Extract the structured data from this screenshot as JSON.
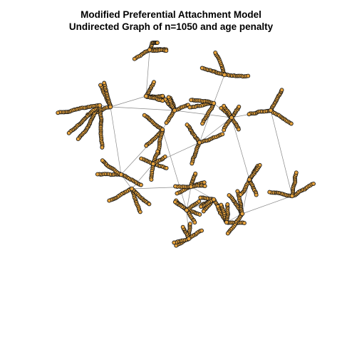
{
  "title": {
    "line1": "Modified Preferential Attachment Model",
    "line2": "Undirected Graph of n=1050 and age penalty"
  },
  "graph": {
    "node_count": 1050,
    "node_color": "#E8A33C",
    "node_border_color": "#1a1a1a",
    "edge_color": "#8a8a8a"
  }
}
